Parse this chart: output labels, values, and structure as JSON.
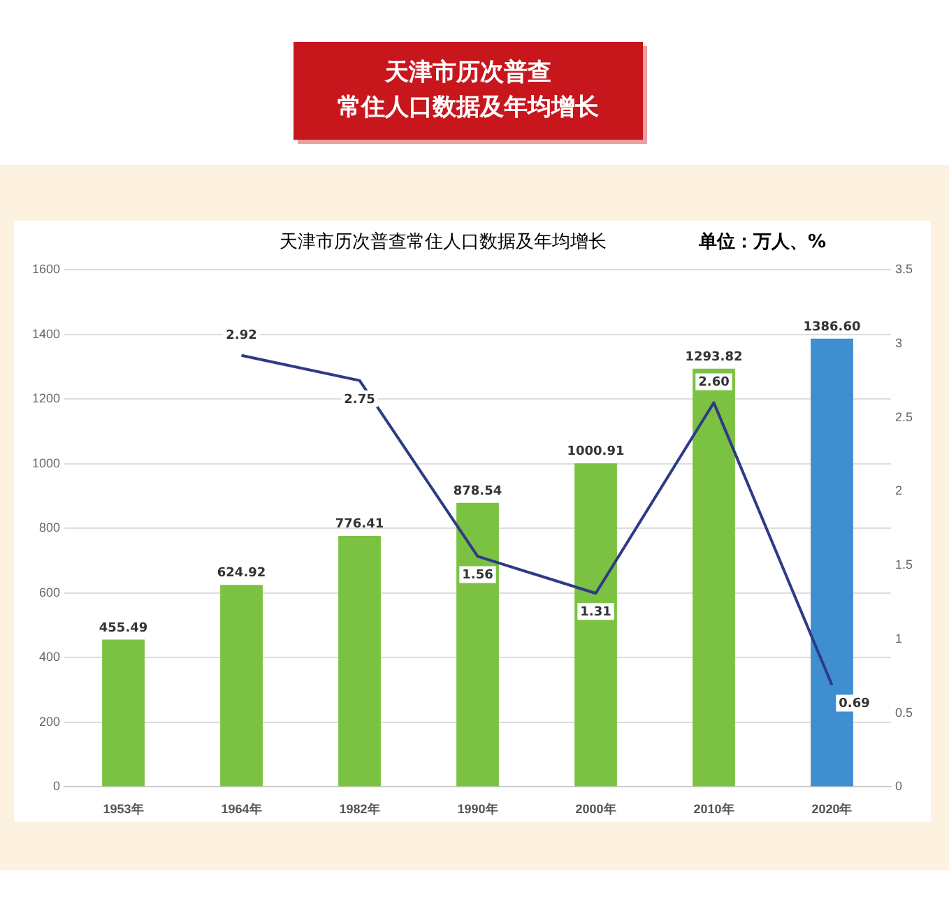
{
  "chart_data": {
    "type": "bar",
    "title": "天津市历次普查常住人口数据及年均增长",
    "subtitle": "单位：万人、%",
    "annotations": [
      "天津市历次普查",
      "常住人口数据及年均增长"
    ],
    "categories": [
      "1953年",
      "1964年",
      "1982年",
      "1990年",
      "2000年",
      "2010年",
      "2020年"
    ],
    "series": [
      {
        "colors": [
          "#7cc242",
          "#7cc242",
          "#7cc242",
          "#7cc242",
          "#7cc242",
          "#7cc242",
          "#3f8fd0"
        ],
        "values": [
          455.49,
          624.92,
          776.41,
          878.54,
          1000.91,
          1293.82,
          1386.6
        ],
        "value_labels": [
          "455.49",
          "624.92",
          "776.41",
          "878.54",
          "1000.91",
          "1293.82",
          "1386.60"
        ]
      },
      {
        "type": "line",
        "axis": "y2",
        "color": "#2e3a87",
        "values": [
          null,
          2.92,
          2.75,
          1.56,
          1.31,
          2.6,
          0.69
        ],
        "value_labels": [
          null,
          "2.92",
          "2.75",
          "1.56",
          "1.31",
          "2.60",
          "0.69"
        ]
      }
    ],
    "ylim": [
      0,
      1600
    ],
    "yticks": [
      0,
      200,
      400,
      600,
      800,
      1000,
      1200,
      1400,
      1600
    ],
    "y2lim": [
      0,
      3.5
    ],
    "y2ticks": [
      0,
      0.5,
      1,
      1.5,
      2,
      2.5,
      3,
      3.5
    ],
    "grid": "y",
    "legend": false,
    "marker": "none",
    "line_style": "solid"
  }
}
